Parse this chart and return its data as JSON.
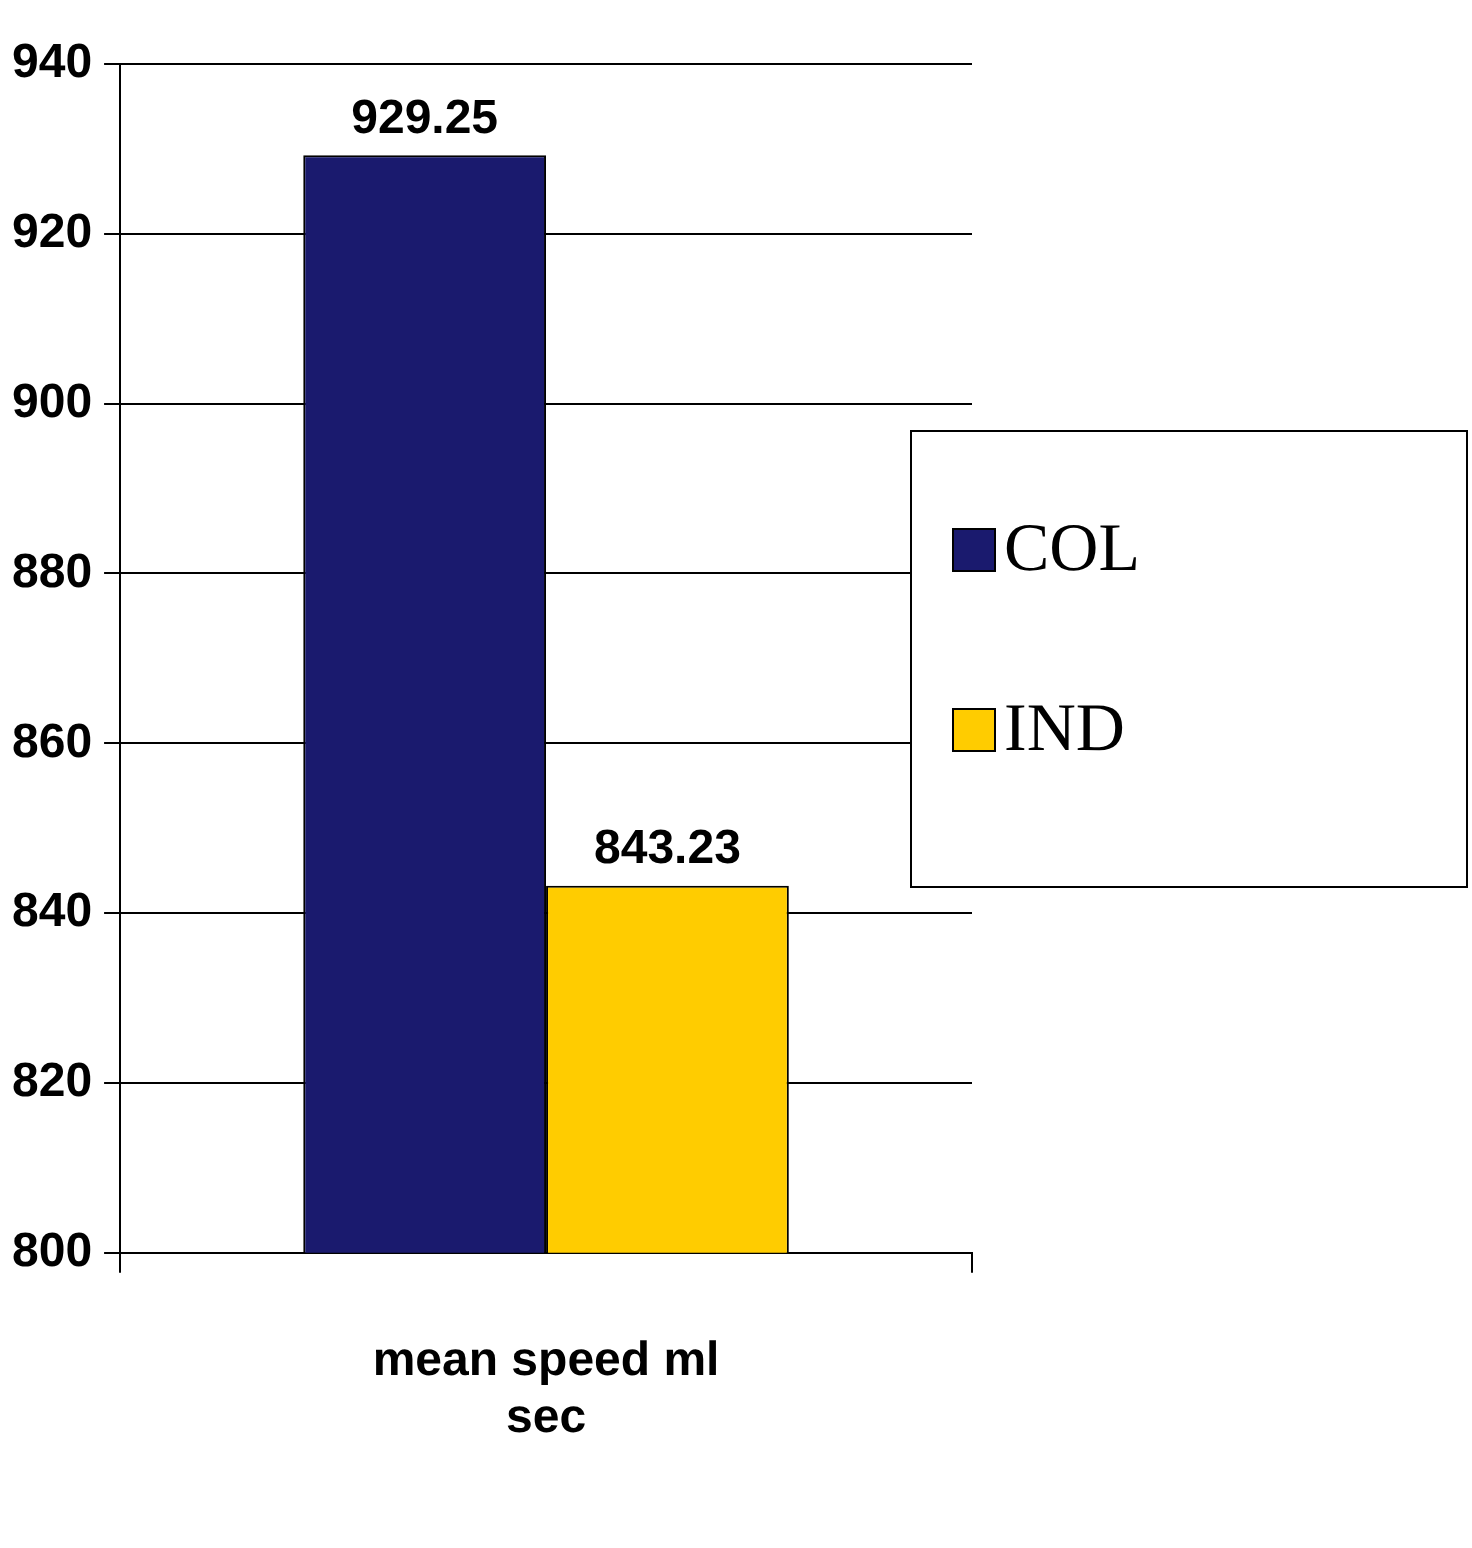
{
  "chart_data": {
    "type": "bar",
    "categories": [
      "mean speed ml sec"
    ],
    "series": [
      {
        "name": "COL",
        "color": "#1a1a6e",
        "values": [
          929.25
        ]
      },
      {
        "name": "IND",
        "color": "#ffcc00",
        "values": [
          843.23
        ]
      }
    ],
    "ylim": [
      800,
      940
    ],
    "yticks": [
      800,
      820,
      840,
      860,
      880,
      900,
      920,
      940
    ],
    "grid": "y",
    "legend": "right",
    "data_labels": true
  }
}
